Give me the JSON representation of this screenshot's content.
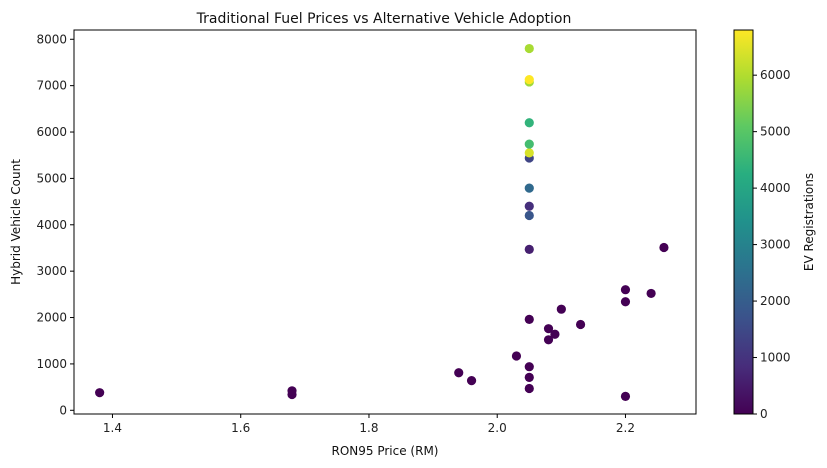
{
  "chart_data": {
    "type": "scatter",
    "title": "Traditional Fuel Prices vs Alternative Vehicle Adoption",
    "xlabel": "RON95 Price (RM)",
    "ylabel": "Hybrid Vehicle Count",
    "xlim": [
      1.34,
      2.31
    ],
    "ylim": [
      -80,
      8200
    ],
    "x_ticks": [
      1.4,
      1.6,
      1.8,
      2.0,
      2.2
    ],
    "x_tick_labels": [
      "1.4",
      "1.6",
      "1.8",
      "2.0",
      "2.2"
    ],
    "y_ticks": [
      0,
      1000,
      2000,
      3000,
      4000,
      5000,
      6000,
      7000,
      8000
    ],
    "y_tick_labels": [
      "0",
      "1000",
      "2000",
      "3000",
      "4000",
      "5000",
      "6000",
      "7000",
      "8000"
    ],
    "grid": false,
    "colorbar": {
      "label": "EV Registrations",
      "colormap": "viridis",
      "range": [
        0,
        6800
      ],
      "ticks": [
        0,
        1000,
        2000,
        3000,
        4000,
        5000,
        6000
      ],
      "tick_labels": [
        "0",
        "1000",
        "2000",
        "3000",
        "4000",
        "5000",
        "6000"
      ]
    },
    "points": [
      {
        "x": 1.38,
        "y": 380,
        "c": 0
      },
      {
        "x": 1.68,
        "y": 340,
        "c": 0
      },
      {
        "x": 1.68,
        "y": 420,
        "c": 0
      },
      {
        "x": 1.94,
        "y": 810,
        "c": 0
      },
      {
        "x": 1.96,
        "y": 640,
        "c": 0
      },
      {
        "x": 2.03,
        "y": 1170,
        "c": 0
      },
      {
        "x": 2.05,
        "y": 470,
        "c": 0
      },
      {
        "x": 2.05,
        "y": 710,
        "c": 0
      },
      {
        "x": 2.05,
        "y": 940,
        "c": 0
      },
      {
        "x": 2.05,
        "y": 1960,
        "c": 0
      },
      {
        "x": 2.05,
        "y": 3470,
        "c": 600
      },
      {
        "x": 2.05,
        "y": 4400,
        "c": 900
      },
      {
        "x": 2.05,
        "y": 4200,
        "c": 1800
      },
      {
        "x": 2.05,
        "y": 4790,
        "c": 2300
      },
      {
        "x": 2.05,
        "y": 5440,
        "c": 1400
      },
      {
        "x": 2.05,
        "y": 5550,
        "c": 6400
      },
      {
        "x": 2.05,
        "y": 5740,
        "c": 4700
      },
      {
        "x": 2.05,
        "y": 6200,
        "c": 4400
      },
      {
        "x": 2.05,
        "y": 7080,
        "c": 5800
      },
      {
        "x": 2.05,
        "y": 7130,
        "c": 6800
      },
      {
        "x": 2.05,
        "y": 7800,
        "c": 5900
      },
      {
        "x": 2.08,
        "y": 1520,
        "c": 0
      },
      {
        "x": 2.08,
        "y": 1760,
        "c": 0
      },
      {
        "x": 2.09,
        "y": 1640,
        "c": 0
      },
      {
        "x": 2.1,
        "y": 2180,
        "c": 0
      },
      {
        "x": 2.13,
        "y": 1850,
        "c": 0
      },
      {
        "x": 2.2,
        "y": 300,
        "c": 0
      },
      {
        "x": 2.2,
        "y": 2340,
        "c": 0
      },
      {
        "x": 2.2,
        "y": 2600,
        "c": 0
      },
      {
        "x": 2.24,
        "y": 2520,
        "c": 0
      },
      {
        "x": 2.26,
        "y": 3510,
        "c": 0
      }
    ]
  }
}
